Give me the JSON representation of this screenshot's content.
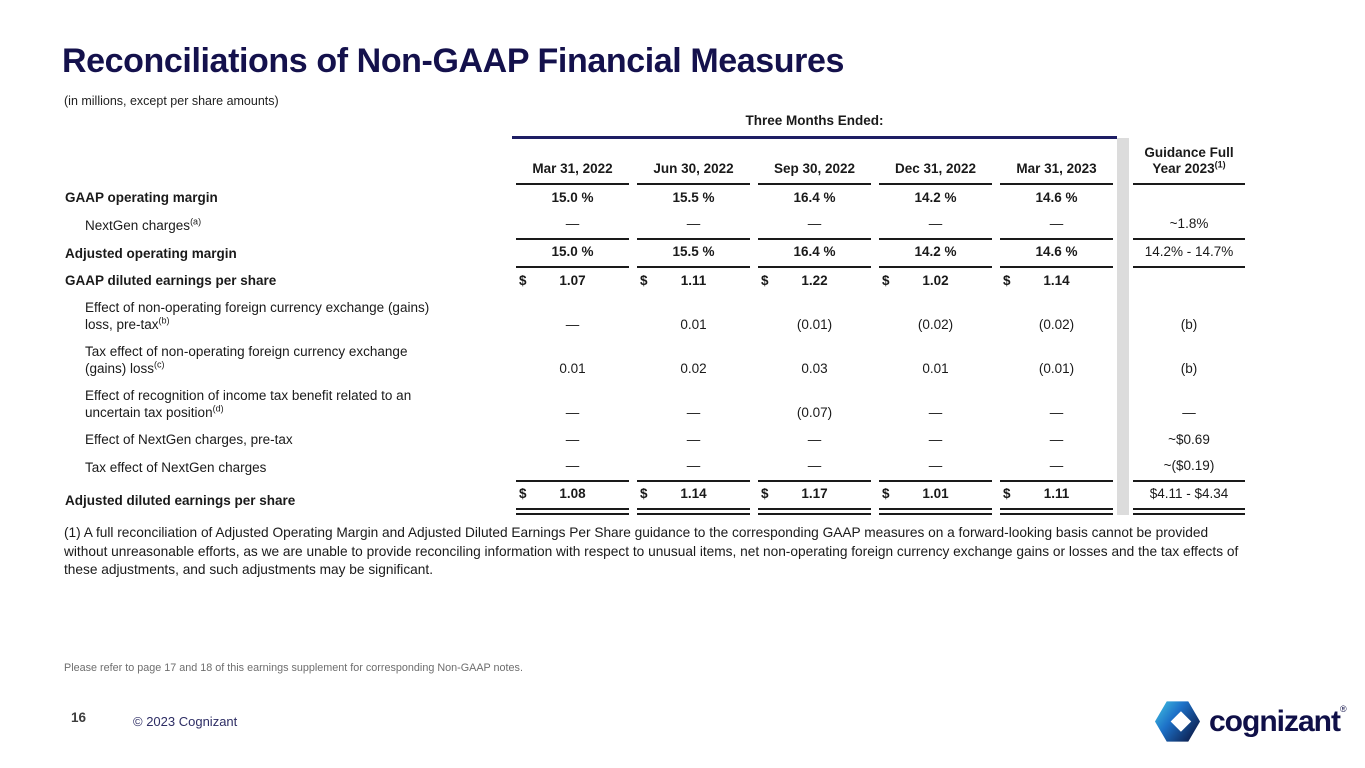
{
  "colors": {
    "brand_navy": "#14114c",
    "group_line_navy": "#1e1e64",
    "table_line_black": "#1a1a1a",
    "separator_gray": "#dcdcdc",
    "muted_gray": "#6e6e6e",
    "logo_cyan": "#43c7e3",
    "logo_blue": "#1d71c8",
    "logo_dark_navy": "#0d2050"
  },
  "header": {
    "title": "Reconciliations of Non-GAAP Financial Measures",
    "subtitle": "(in millions, except per share amounts)"
  },
  "table": {
    "group_header": "Three Months Ended:",
    "columns": [
      "Mar 31, 2022",
      "Jun 30, 2022",
      "Sep 30, 2022",
      "Dec 31, 2022",
      "Mar 31, 2023"
    ],
    "guidance_column": {
      "line1": "Guidance Full",
      "line2": "Year 2023",
      "sup": "(1)"
    },
    "rows": [
      {
        "label": "GAAP operating margin",
        "label2": "",
        "sup": "",
        "bold": true,
        "indent": false,
        "dollar": false,
        "values": [
          "15.0 %",
          "15.5 %",
          "16.4 %",
          "14.2 %",
          "14.6 %"
        ],
        "guidance": "",
        "border": ""
      },
      {
        "label": "NextGen charges",
        "label2": "",
        "sup": "(a)",
        "bold": false,
        "indent": true,
        "dollar": false,
        "values": [
          "—",
          "—",
          "—",
          "—",
          "—"
        ],
        "guidance": "~1.8%",
        "border": "single"
      },
      {
        "label": "Adjusted operating margin",
        "label2": "",
        "sup": "",
        "bold": true,
        "indent": false,
        "dollar": false,
        "values": [
          "15.0 %",
          "15.5 %",
          "16.4 %",
          "14.2 %",
          "14.6 %"
        ],
        "guidance": "14.2% - 14.7%",
        "border": "single"
      },
      {
        "label": "GAAP diluted earnings per share",
        "label2": "",
        "sup": "",
        "bold": true,
        "indent": false,
        "dollar": true,
        "values": [
          "1.07",
          "1.11",
          "1.22",
          "1.02",
          "1.14"
        ],
        "guidance": "",
        "border": ""
      },
      {
        "label": "Effect of non-operating foreign currency exchange (gains)",
        "label2": "loss, pre-tax",
        "sup": "(b)",
        "bold": false,
        "indent": true,
        "dollar": false,
        "values": [
          "—",
          "0.01",
          "(0.01)",
          "(0.02)",
          "(0.02)"
        ],
        "guidance": "(b)",
        "border": ""
      },
      {
        "label": "Tax effect of non-operating foreign currency exchange",
        "label2": "(gains) loss",
        "sup": "(c)",
        "bold": false,
        "indent": true,
        "dollar": false,
        "values": [
          "0.01",
          "0.02",
          "0.03",
          "0.01",
          "(0.01)"
        ],
        "guidance": "(b)",
        "border": ""
      },
      {
        "label": "Effect of recognition of income tax benefit related to an",
        "label2": "uncertain tax position",
        "sup": "(d)",
        "bold": false,
        "indent": true,
        "dollar": false,
        "values": [
          "—",
          "—",
          "(0.07)",
          "—",
          "—"
        ],
        "guidance": "—",
        "border": ""
      },
      {
        "label": "Effect of NextGen charges, pre-tax",
        "label2": "",
        "sup": "",
        "bold": false,
        "indent": true,
        "dollar": false,
        "values": [
          "—",
          "—",
          "—",
          "—",
          "—"
        ],
        "guidance": "~$0.69",
        "border": ""
      },
      {
        "label": "Tax effect of NextGen charges",
        "label2": "",
        "sup": "",
        "bold": false,
        "indent": true,
        "dollar": false,
        "values": [
          "—",
          "—",
          "—",
          "—",
          "—"
        ],
        "guidance": "~($0.19)",
        "border": "single"
      },
      {
        "label": "Adjusted diluted earnings per share",
        "label2": "",
        "sup": "",
        "bold": true,
        "indent": false,
        "dollar": true,
        "values": [
          "1.08",
          "1.14",
          "1.17",
          "1.01",
          "1.11"
        ],
        "guidance": "$4.11 - $4.34",
        "border": "double"
      }
    ]
  },
  "footnote": "(1) A full reconciliation of Adjusted Operating Margin and Adjusted Diluted Earnings Per Share guidance to the corresponding GAAP measures on a forward-looking basis cannot be provided without unreasonable efforts, as we are unable to provide reconciling information with respect to unusual items, net non-operating foreign currency exchange gains or losses and the tax effects of these adjustments, and such adjustments may be significant.",
  "reference_note": "Please refer to page 17 and 18 of this earnings supplement for corresponding Non-GAAP notes.",
  "footer": {
    "page_number": "16",
    "copyright": "© 2023 Cognizant",
    "logo_text": "cognizant",
    "logo_mark": "®"
  }
}
